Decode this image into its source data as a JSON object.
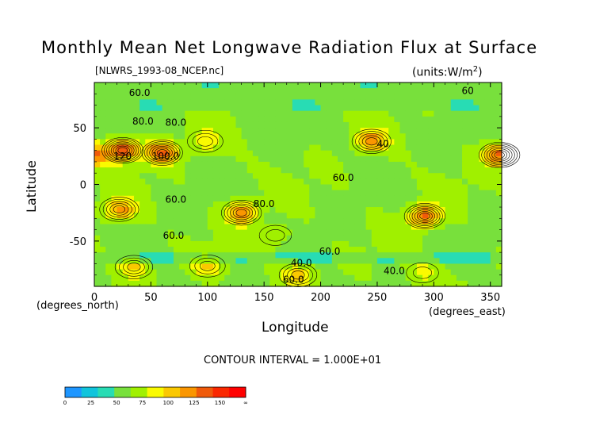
{
  "chart_data": {
    "type": "heatmap",
    "title": "Monthly Mean Net Longwave Radiation Flux at Surface",
    "filename": "[NLWRS_1993-08_NCEP.nc]",
    "units": "(units:W/m^2)",
    "xlabel": "Longitude",
    "ylabel": "Latitude",
    "x_units": "(degrees_east)",
    "y_units": "(degrees_north)",
    "xlim": [
      0,
      360
    ],
    "ylim": [
      -90,
      90
    ],
    "xticks": [
      0,
      50,
      100,
      150,
      200,
      250,
      300,
      350
    ],
    "yticks": [
      50,
      0,
      -50
    ],
    "contour_interval_text": "CONTOUR INTERVAL = 1.000E+01",
    "contour_interval": 10,
    "contour_labels": [
      {
        "text": "60.0",
        "lon": 40,
        "lat": 78
      },
      {
        "text": "80.0",
        "lon": 43,
        "lat": 53
      },
      {
        "text": "80.0",
        "lon": 72,
        "lat": 52
      },
      {
        "text": "100.0",
        "lon": 63,
        "lat": 22
      },
      {
        "text": "120",
        "lon": 25,
        "lat": 22
      },
      {
        "text": "60.0",
        "lon": 72,
        "lat": -16
      },
      {
        "text": "80.0",
        "lon": 150,
        "lat": -20
      },
      {
        "text": "60.0",
        "lon": 220,
        "lat": 3
      },
      {
        "text": "60.0",
        "lon": 70,
        "lat": -48
      },
      {
        "text": "60.0",
        "lon": 208,
        "lat": -62
      },
      {
        "text": "40.0",
        "lon": 183,
        "lat": -72
      },
      {
        "text": "40.0",
        "lon": 265,
        "lat": -79
      },
      {
        "text": "60.0",
        "lon": 176,
        "lat": -87
      },
      {
        "text": "40",
        "lon": 255,
        "lat": 33
      },
      {
        "text": "60",
        "lon": 330,
        "lat": 80
      }
    ],
    "colorbar": {
      "ticks": [
        "0",
        "25",
        "50",
        "75",
        "100",
        "125",
        "150",
        "∞"
      ],
      "colors": [
        "#1e96ff",
        "#10c4dc",
        "#28dcb4",
        "#78e03c",
        "#a0f000",
        "#fafa00",
        "#fac800",
        "#fa9600",
        "#f05a0a",
        "#fa2800",
        "#ff0000"
      ]
    },
    "hotspots": [
      {
        "lon": 25,
        "lat": 30,
        "value": 135
      },
      {
        "lon": 60,
        "lat": 28,
        "value": 130
      },
      {
        "lon": 358,
        "lat": 26,
        "value": 125
      },
      {
        "lon": 245,
        "lat": 38,
        "value": 110
      },
      {
        "lon": 130,
        "lat": -25,
        "value": 118
      },
      {
        "lon": 22,
        "lat": -22,
        "value": 110
      },
      {
        "lon": 292,
        "lat": -28,
        "value": 125
      },
      {
        "lon": 98,
        "lat": 38,
        "value": 85
      },
      {
        "lon": 160,
        "lat": -45,
        "value": 82
      },
      {
        "lon": 35,
        "lat": -73,
        "value": 95
      },
      {
        "lon": 100,
        "lat": -72,
        "value": 90
      },
      {
        "lon": 180,
        "lat": -80,
        "value": 95
      },
      {
        "lon": 290,
        "lat": -78,
        "value": 80
      }
    ]
  }
}
